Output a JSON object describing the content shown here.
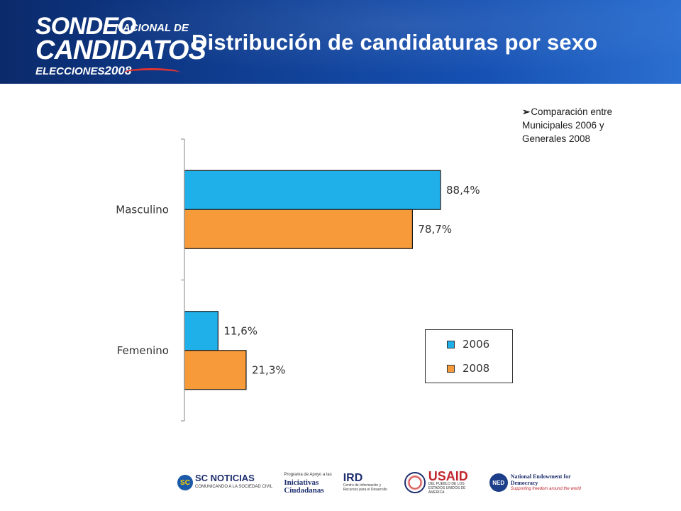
{
  "header": {
    "logo": {
      "line1": "SONDEO",
      "line1_small": "NACIONAL DE",
      "line2": "CANDIDATOS",
      "line3_prefix": "ELECCIONES",
      "line3_year": "2008"
    },
    "title": "Distribución de candidaturas por sexo"
  },
  "note": {
    "bullet": "➢",
    "text": "Comparación entre Municipales 2006 y Generales 2008"
  },
  "chart_data": {
    "type": "bar",
    "orientation": "horizontal",
    "categories": [
      "Masculino",
      "Femenino"
    ],
    "series": [
      {
        "name": "2006",
        "values": [
          88.4,
          11.6
        ],
        "labels": [
          "88,4%",
          "11,6%"
        ],
        "color": "#1fb0ea"
      },
      {
        "name": "2008",
        "values": [
          78.7,
          21.3
        ],
        "labels": [
          "78,7%",
          "21,3%"
        ],
        "color": "#f79b3a"
      }
    ],
    "title": "",
    "xlabel": "",
    "ylabel": "",
    "xlim": [
      0,
      100
    ],
    "legend_position": "bottom-right",
    "grid": false
  },
  "legend": {
    "items": [
      {
        "label": "2006",
        "color": "#1fb0ea"
      },
      {
        "label": "2008",
        "color": "#f79b3a"
      }
    ]
  },
  "footer": {
    "logos": [
      {
        "name": "SC NOTICIAS",
        "sub": "COMUNICANDO A LA SOCIEDAD CIVIL"
      },
      {
        "name": "Iniciativas Ciudadanas",
        "sub": "Programa de Apoyo a las"
      },
      {
        "name": "IRD",
        "sub": "Centro de Información y Recursos para el Desarrollo"
      },
      {
        "name": "USAID",
        "sub": "DEL PUEBLO DE LOS ESTADOS UNIDOS DE AMÉRICA"
      },
      {
        "name": "National Endowment for Democracy",
        "sub": "Supporting freedom around the world"
      }
    ]
  }
}
